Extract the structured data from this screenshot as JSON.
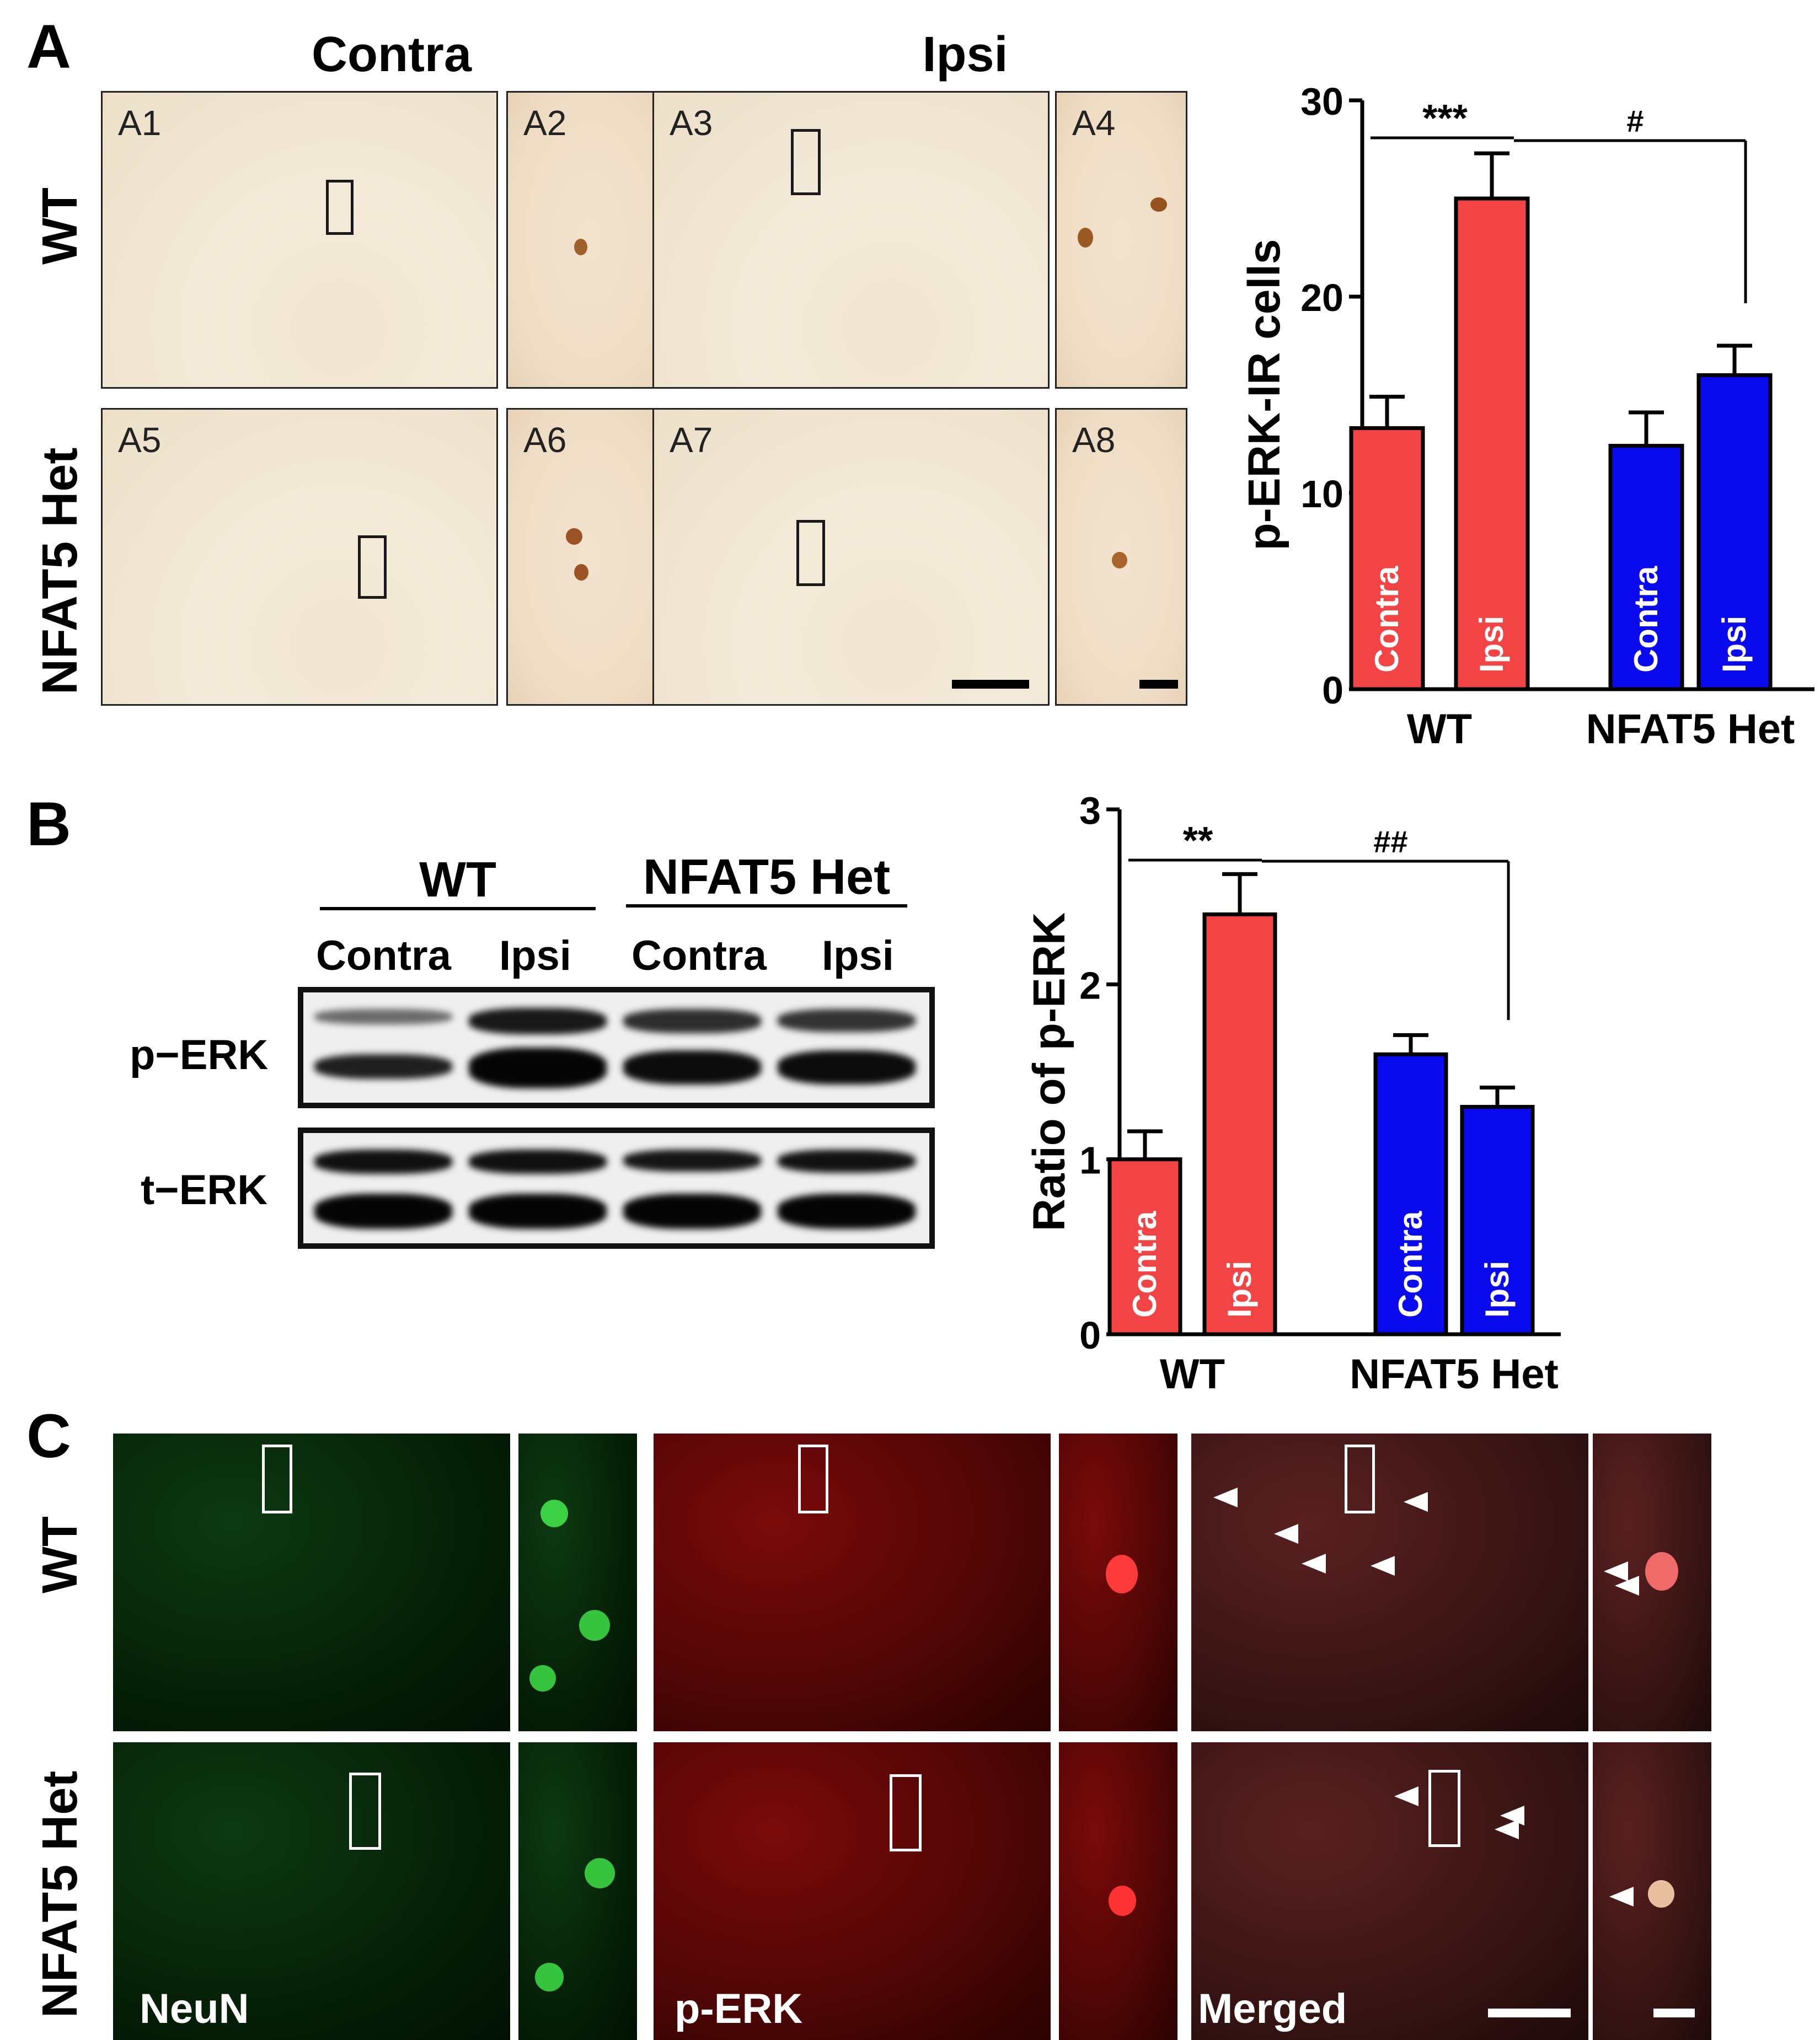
{
  "panelA": {
    "letter": "A",
    "col_headers": [
      "Contra",
      "Ipsi"
    ],
    "row_labels": [
      "WT",
      "NFAT5 Het"
    ],
    "tags": [
      "A1",
      "A2",
      "A3",
      "A4",
      "A5",
      "A6",
      "A7",
      "A8"
    ]
  },
  "panelB": {
    "letter": "B",
    "groups": [
      "WT",
      "NFAT5 Het"
    ],
    "lanes": [
      "Contra",
      "Ipsi",
      "Contra",
      "Ipsi"
    ],
    "blot_labels": [
      "p−ERK",
      "t−ERK"
    ]
  },
  "panelC": {
    "letter": "C",
    "row_labels": [
      "WT",
      "NFAT5 Het"
    ],
    "channel_labels": [
      "NeuN",
      "p-ERK",
      "Merged"
    ]
  },
  "colors": {
    "wt": "#f24444",
    "het": "#0a0aee",
    "axis": "#000000"
  },
  "chart_data": [
    {
      "type": "bar",
      "ylabel": "p-ERK-IR cells",
      "ylim": [
        0,
        30
      ],
      "yticks": [
        0,
        10,
        20,
        30
      ],
      "groups": [
        "WT",
        "NFAT5 Het"
      ],
      "bars": [
        {
          "group": "WT",
          "label": "Contra",
          "value": 13.3,
          "error": 1.6,
          "color": "#f24444"
        },
        {
          "group": "WT",
          "label": "Ipsi",
          "value": 25.0,
          "error": 2.3,
          "color": "#f24444"
        },
        {
          "group": "NFAT5 Het",
          "label": "Contra",
          "value": 12.4,
          "error": 1.7,
          "color": "#0a0aee"
        },
        {
          "group": "NFAT5 Het",
          "label": "Ipsi",
          "value": 16.0,
          "error": 1.5,
          "color": "#0a0aee"
        }
      ],
      "annotations": [
        "***",
        "#"
      ]
    },
    {
      "type": "bar",
      "ylabel": "Ratio of p-ERK",
      "ylim": [
        0,
        3
      ],
      "yticks": [
        0,
        1,
        2,
        3
      ],
      "groups": [
        "WT",
        "NFAT5 Het"
      ],
      "bars": [
        {
          "group": "WT",
          "label": "Contra",
          "value": 1.0,
          "error": 0.16,
          "color": "#f24444"
        },
        {
          "group": "WT",
          "label": "Ipsi",
          "value": 2.4,
          "error": 0.23,
          "color": "#f24444"
        },
        {
          "group": "NFAT5 Het",
          "label": "Contra",
          "value": 1.6,
          "error": 0.11,
          "color": "#0a0aee"
        },
        {
          "group": "NFAT5 Het",
          "label": "Ipsi",
          "value": 1.3,
          "error": 0.11,
          "color": "#0a0aee"
        }
      ],
      "annotations": [
        "**",
        "##"
      ]
    }
  ]
}
